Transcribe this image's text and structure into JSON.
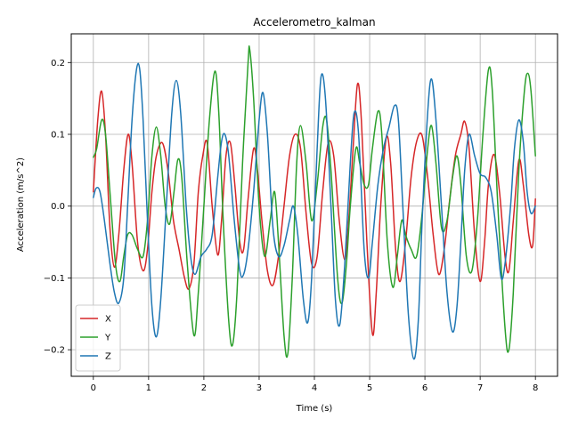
{
  "chart_data": {
    "type": "line",
    "title": "Accelerometro_kalman",
    "xlabel": "Time (s)",
    "ylabel": "Acceleration (m/s^2)",
    "xlim": [
      -0.4,
      8.4
    ],
    "ylim": [
      -0.237,
      0.24
    ],
    "xticks": [
      0,
      1,
      2,
      3,
      4,
      5,
      6,
      7,
      8
    ],
    "yticks": [
      -0.2,
      -0.1,
      0.0,
      0.1,
      0.2
    ],
    "xtick_labels": [
      "0",
      "1",
      "2",
      "3",
      "4",
      "5",
      "6",
      "7",
      "8"
    ],
    "ytick_labels": [
      "−0.2",
      "−0.1",
      "0.0",
      "0.1",
      "0.2"
    ],
    "grid": true,
    "legend_position": "lower-left",
    "series": [
      {
        "name": "X",
        "color": "#d62728",
        "points": [
          [
            0.0,
            0.02
          ],
          [
            0.08,
            0.12
          ],
          [
            0.15,
            0.16
          ],
          [
            0.22,
            0.1
          ],
          [
            0.3,
            -0.03
          ],
          [
            0.38,
            -0.085
          ],
          [
            0.46,
            -0.04
          ],
          [
            0.55,
            0.05
          ],
          [
            0.63,
            0.1
          ],
          [
            0.7,
            0.06
          ],
          [
            0.8,
            -0.05
          ],
          [
            0.9,
            -0.09
          ],
          [
            0.98,
            -0.06
          ],
          [
            1.06,
            0.02
          ],
          [
            1.14,
            0.07
          ],
          [
            1.25,
            0.088
          ],
          [
            1.35,
            0.05
          ],
          [
            1.45,
            -0.02
          ],
          [
            1.55,
            -0.06
          ],
          [
            1.65,
            -0.1
          ],
          [
            1.73,
            -0.115
          ],
          [
            1.82,
            -0.08
          ],
          [
            1.9,
            0.02
          ],
          [
            1.98,
            0.07
          ],
          [
            2.06,
            0.088
          ],
          [
            2.15,
            0.0
          ],
          [
            2.25,
            -0.068
          ],
          [
            2.32,
            -0.02
          ],
          [
            2.4,
            0.07
          ],
          [
            2.48,
            0.088
          ],
          [
            2.56,
            0.03
          ],
          [
            2.65,
            -0.05
          ],
          [
            2.72,
            -0.06
          ],
          [
            2.8,
            0.01
          ],
          [
            2.9,
            0.08
          ],
          [
            2.97,
            0.05
          ],
          [
            3.05,
            -0.02
          ],
          [
            3.15,
            -0.09
          ],
          [
            3.25,
            -0.11
          ],
          [
            3.35,
            -0.07
          ],
          [
            3.45,
            0.0
          ],
          [
            3.55,
            0.07
          ],
          [
            3.65,
            0.1
          ],
          [
            3.75,
            0.08
          ],
          [
            3.85,
            -0.01
          ],
          [
            3.95,
            -0.08
          ],
          [
            4.05,
            -0.07
          ],
          [
            4.15,
            0.02
          ],
          [
            4.25,
            0.088
          ],
          [
            4.35,
            0.07
          ],
          [
            4.45,
            -0.02
          ],
          [
            4.55,
            -0.075
          ],
          [
            4.62,
            -0.02
          ],
          [
            4.7,
            0.08
          ],
          [
            4.78,
            0.17
          ],
          [
            4.85,
            0.12
          ],
          [
            4.95,
            -0.05
          ],
          [
            5.05,
            -0.178
          ],
          [
            5.12,
            -0.12
          ],
          [
            5.2,
            0.0
          ],
          [
            5.3,
            0.095
          ],
          [
            5.38,
            0.06
          ],
          [
            5.47,
            -0.06
          ],
          [
            5.55,
            -0.105
          ],
          [
            5.65,
            -0.05
          ],
          [
            5.75,
            0.04
          ],
          [
            5.85,
            0.09
          ],
          [
            5.95,
            0.098
          ],
          [
            6.05,
            0.04
          ],
          [
            6.15,
            -0.04
          ],
          [
            6.25,
            -0.095
          ],
          [
            6.35,
            -0.06
          ],
          [
            6.45,
            0.01
          ],
          [
            6.55,
            0.07
          ],
          [
            6.65,
            0.1
          ],
          [
            6.72,
            0.118
          ],
          [
            6.8,
            0.08
          ],
          [
            6.9,
            -0.04
          ],
          [
            7.0,
            -0.105
          ],
          [
            7.08,
            -0.05
          ],
          [
            7.15,
            0.03
          ],
          [
            7.25,
            0.072
          ],
          [
            7.35,
            0.02
          ],
          [
            7.45,
            -0.07
          ],
          [
            7.52,
            -0.09
          ],
          [
            7.6,
            -0.02
          ],
          [
            7.7,
            0.064
          ],
          [
            7.78,
            0.03
          ],
          [
            7.88,
            -0.04
          ],
          [
            7.95,
            -0.055
          ],
          [
            8.0,
            0.01
          ]
        ]
      },
      {
        "name": "Y",
        "color": "#2ca02c",
        "points": [
          [
            0.0,
            0.068
          ],
          [
            0.06,
            0.08
          ],
          [
            0.15,
            0.12
          ],
          [
            0.22,
            0.1
          ],
          [
            0.3,
            0.02
          ],
          [
            0.4,
            -0.08
          ],
          [
            0.48,
            -0.105
          ],
          [
            0.55,
            -0.07
          ],
          [
            0.62,
            -0.04
          ],
          [
            0.7,
            -0.04
          ],
          [
            0.8,
            -0.06
          ],
          [
            0.9,
            -0.07
          ],
          [
            0.98,
            -0.02
          ],
          [
            1.06,
            0.07
          ],
          [
            1.14,
            0.11
          ],
          [
            1.22,
            0.07
          ],
          [
            1.3,
            0.0
          ],
          [
            1.38,
            -0.025
          ],
          [
            1.46,
            0.02
          ],
          [
            1.53,
            0.065
          ],
          [
            1.6,
            0.04
          ],
          [
            1.7,
            -0.08
          ],
          [
            1.82,
            -0.18
          ],
          [
            1.9,
            -0.12
          ],
          [
            2.0,
            0.0
          ],
          [
            2.1,
            0.12
          ],
          [
            2.2,
            0.188
          ],
          [
            2.27,
            0.13
          ],
          [
            2.35,
            -0.02
          ],
          [
            2.45,
            -0.16
          ],
          [
            2.52,
            -0.193
          ],
          [
            2.6,
            -0.12
          ],
          [
            2.7,
            0.06
          ],
          [
            2.8,
            0.2
          ],
          [
            2.83,
            0.218
          ],
          [
            2.9,
            0.15
          ],
          [
            3.0,
            0.0
          ],
          [
            3.1,
            -0.07
          ],
          [
            3.2,
            -0.02
          ],
          [
            3.28,
            0.02
          ],
          [
            3.35,
            -0.05
          ],
          [
            3.45,
            -0.18
          ],
          [
            3.52,
            -0.205
          ],
          [
            3.6,
            -0.1
          ],
          [
            3.68,
            0.06
          ],
          [
            3.75,
            0.112
          ],
          [
            3.85,
            0.06
          ],
          [
            3.95,
            -0.02
          ],
          [
            4.05,
            0.03
          ],
          [
            4.15,
            0.11
          ],
          [
            4.22,
            0.12
          ],
          [
            4.3,
            0.05
          ],
          [
            4.42,
            -0.1
          ],
          [
            4.5,
            -0.135
          ],
          [
            4.58,
            -0.08
          ],
          [
            4.65,
            0.0
          ],
          [
            4.75,
            0.08
          ],
          [
            4.82,
            0.06
          ],
          [
            4.9,
            0.03
          ],
          [
            4.98,
            0.03
          ],
          [
            5.05,
            0.08
          ],
          [
            5.15,
            0.132
          ],
          [
            5.22,
            0.1
          ],
          [
            5.32,
            -0.05
          ],
          [
            5.42,
            -0.113
          ],
          [
            5.5,
            -0.07
          ],
          [
            5.58,
            -0.02
          ],
          [
            5.65,
            -0.04
          ],
          [
            5.75,
            -0.06
          ],
          [
            5.85,
            -0.07
          ],
          [
            5.95,
            -0.01
          ],
          [
            6.05,
            0.08
          ],
          [
            6.12,
            0.112
          ],
          [
            6.2,
            0.06
          ],
          [
            6.3,
            -0.03
          ],
          [
            6.4,
            -0.02
          ],
          [
            6.5,
            0.04
          ],
          [
            6.58,
            0.07
          ],
          [
            6.65,
            0.03
          ],
          [
            6.75,
            -0.07
          ],
          [
            6.85,
            -0.09
          ],
          [
            6.95,
            -0.02
          ],
          [
            7.05,
            0.1
          ],
          [
            7.15,
            0.19
          ],
          [
            7.22,
            0.16
          ],
          [
            7.32,
            0.0
          ],
          [
            7.45,
            -0.17
          ],
          [
            7.52,
            -0.2
          ],
          [
            7.6,
            -0.12
          ],
          [
            7.7,
            0.05
          ],
          [
            7.8,
            0.16
          ],
          [
            7.86,
            0.185
          ],
          [
            7.92,
            0.16
          ],
          [
            8.0,
            0.07
          ]
        ]
      },
      {
        "name": "Z",
        "color": "#1f77b4",
        "points": [
          [
            0.0,
            0.012
          ],
          [
            0.05,
            0.025
          ],
          [
            0.12,
            0.02
          ],
          [
            0.2,
            -0.02
          ],
          [
            0.3,
            -0.08
          ],
          [
            0.38,
            -0.12
          ],
          [
            0.46,
            -0.135
          ],
          [
            0.55,
            -0.1
          ],
          [
            0.62,
            0.0
          ],
          [
            0.7,
            0.12
          ],
          [
            0.78,
            0.19
          ],
          [
            0.84,
            0.19
          ],
          [
            0.9,
            0.12
          ],
          [
            0.98,
            -0.02
          ],
          [
            1.06,
            -0.14
          ],
          [
            1.14,
            -0.182
          ],
          [
            1.22,
            -0.13
          ],
          [
            1.32,
            0.0
          ],
          [
            1.42,
            0.13
          ],
          [
            1.5,
            0.175
          ],
          [
            1.58,
            0.13
          ],
          [
            1.68,
            0.0
          ],
          [
            1.76,
            -0.07
          ],
          [
            1.84,
            -0.095
          ],
          [
            1.95,
            -0.07
          ],
          [
            2.05,
            -0.06
          ],
          [
            2.15,
            -0.04
          ],
          [
            2.25,
            0.04
          ],
          [
            2.32,
            0.09
          ],
          [
            2.38,
            0.1
          ],
          [
            2.45,
            0.07
          ],
          [
            2.55,
            -0.02
          ],
          [
            2.65,
            -0.09
          ],
          [
            2.72,
            -0.095
          ],
          [
            2.8,
            -0.06
          ],
          [
            2.9,
            0.02
          ],
          [
            3.0,
            0.12
          ],
          [
            3.07,
            0.158
          ],
          [
            3.15,
            0.1
          ],
          [
            3.25,
            -0.03
          ],
          [
            3.35,
            -0.07
          ],
          [
            3.45,
            -0.055
          ],
          [
            3.55,
            -0.02
          ],
          [
            3.62,
            0.0
          ],
          [
            3.7,
            -0.04
          ],
          [
            3.8,
            -0.13
          ],
          [
            3.88,
            -0.162
          ],
          [
            3.95,
            -0.1
          ],
          [
            4.05,
            0.08
          ],
          [
            4.12,
            0.18
          ],
          [
            4.2,
            0.15
          ],
          [
            4.3,
            0.0
          ],
          [
            4.38,
            -0.13
          ],
          [
            4.46,
            -0.165
          ],
          [
            4.55,
            -0.08
          ],
          [
            4.65,
            0.06
          ],
          [
            4.72,
            0.13
          ],
          [
            4.8,
            0.1
          ],
          [
            4.9,
            -0.06
          ],
          [
            4.98,
            -0.1
          ],
          [
            5.05,
            -0.05
          ],
          [
            5.15,
            0.03
          ],
          [
            5.25,
            0.08
          ],
          [
            5.35,
            0.11
          ],
          [
            5.45,
            0.14
          ],
          [
            5.52,
            0.12
          ],
          [
            5.6,
            0.0
          ],
          [
            5.7,
            -0.15
          ],
          [
            5.8,
            -0.213
          ],
          [
            5.88,
            -0.16
          ],
          [
            5.95,
            -0.02
          ],
          [
            6.05,
            0.13
          ],
          [
            6.12,
            0.177
          ],
          [
            6.2,
            0.12
          ],
          [
            6.3,
            0.0
          ],
          [
            6.4,
            -0.12
          ],
          [
            6.5,
            -0.175
          ],
          [
            6.58,
            -0.14
          ],
          [
            6.65,
            -0.05
          ],
          [
            6.72,
            0.05
          ],
          [
            6.8,
            0.1
          ],
          [
            6.9,
            0.07
          ],
          [
            7.0,
            0.045
          ],
          [
            7.1,
            0.04
          ],
          [
            7.2,
            0.02
          ],
          [
            7.3,
            -0.04
          ],
          [
            7.38,
            -0.1
          ],
          [
            7.45,
            -0.08
          ],
          [
            7.55,
            0.0
          ],
          [
            7.62,
            0.08
          ],
          [
            7.7,
            0.12
          ],
          [
            7.78,
            0.09
          ],
          [
            7.85,
            0.02
          ],
          [
            7.92,
            -0.01
          ],
          [
            8.0,
            0.0
          ]
        ]
      }
    ]
  }
}
